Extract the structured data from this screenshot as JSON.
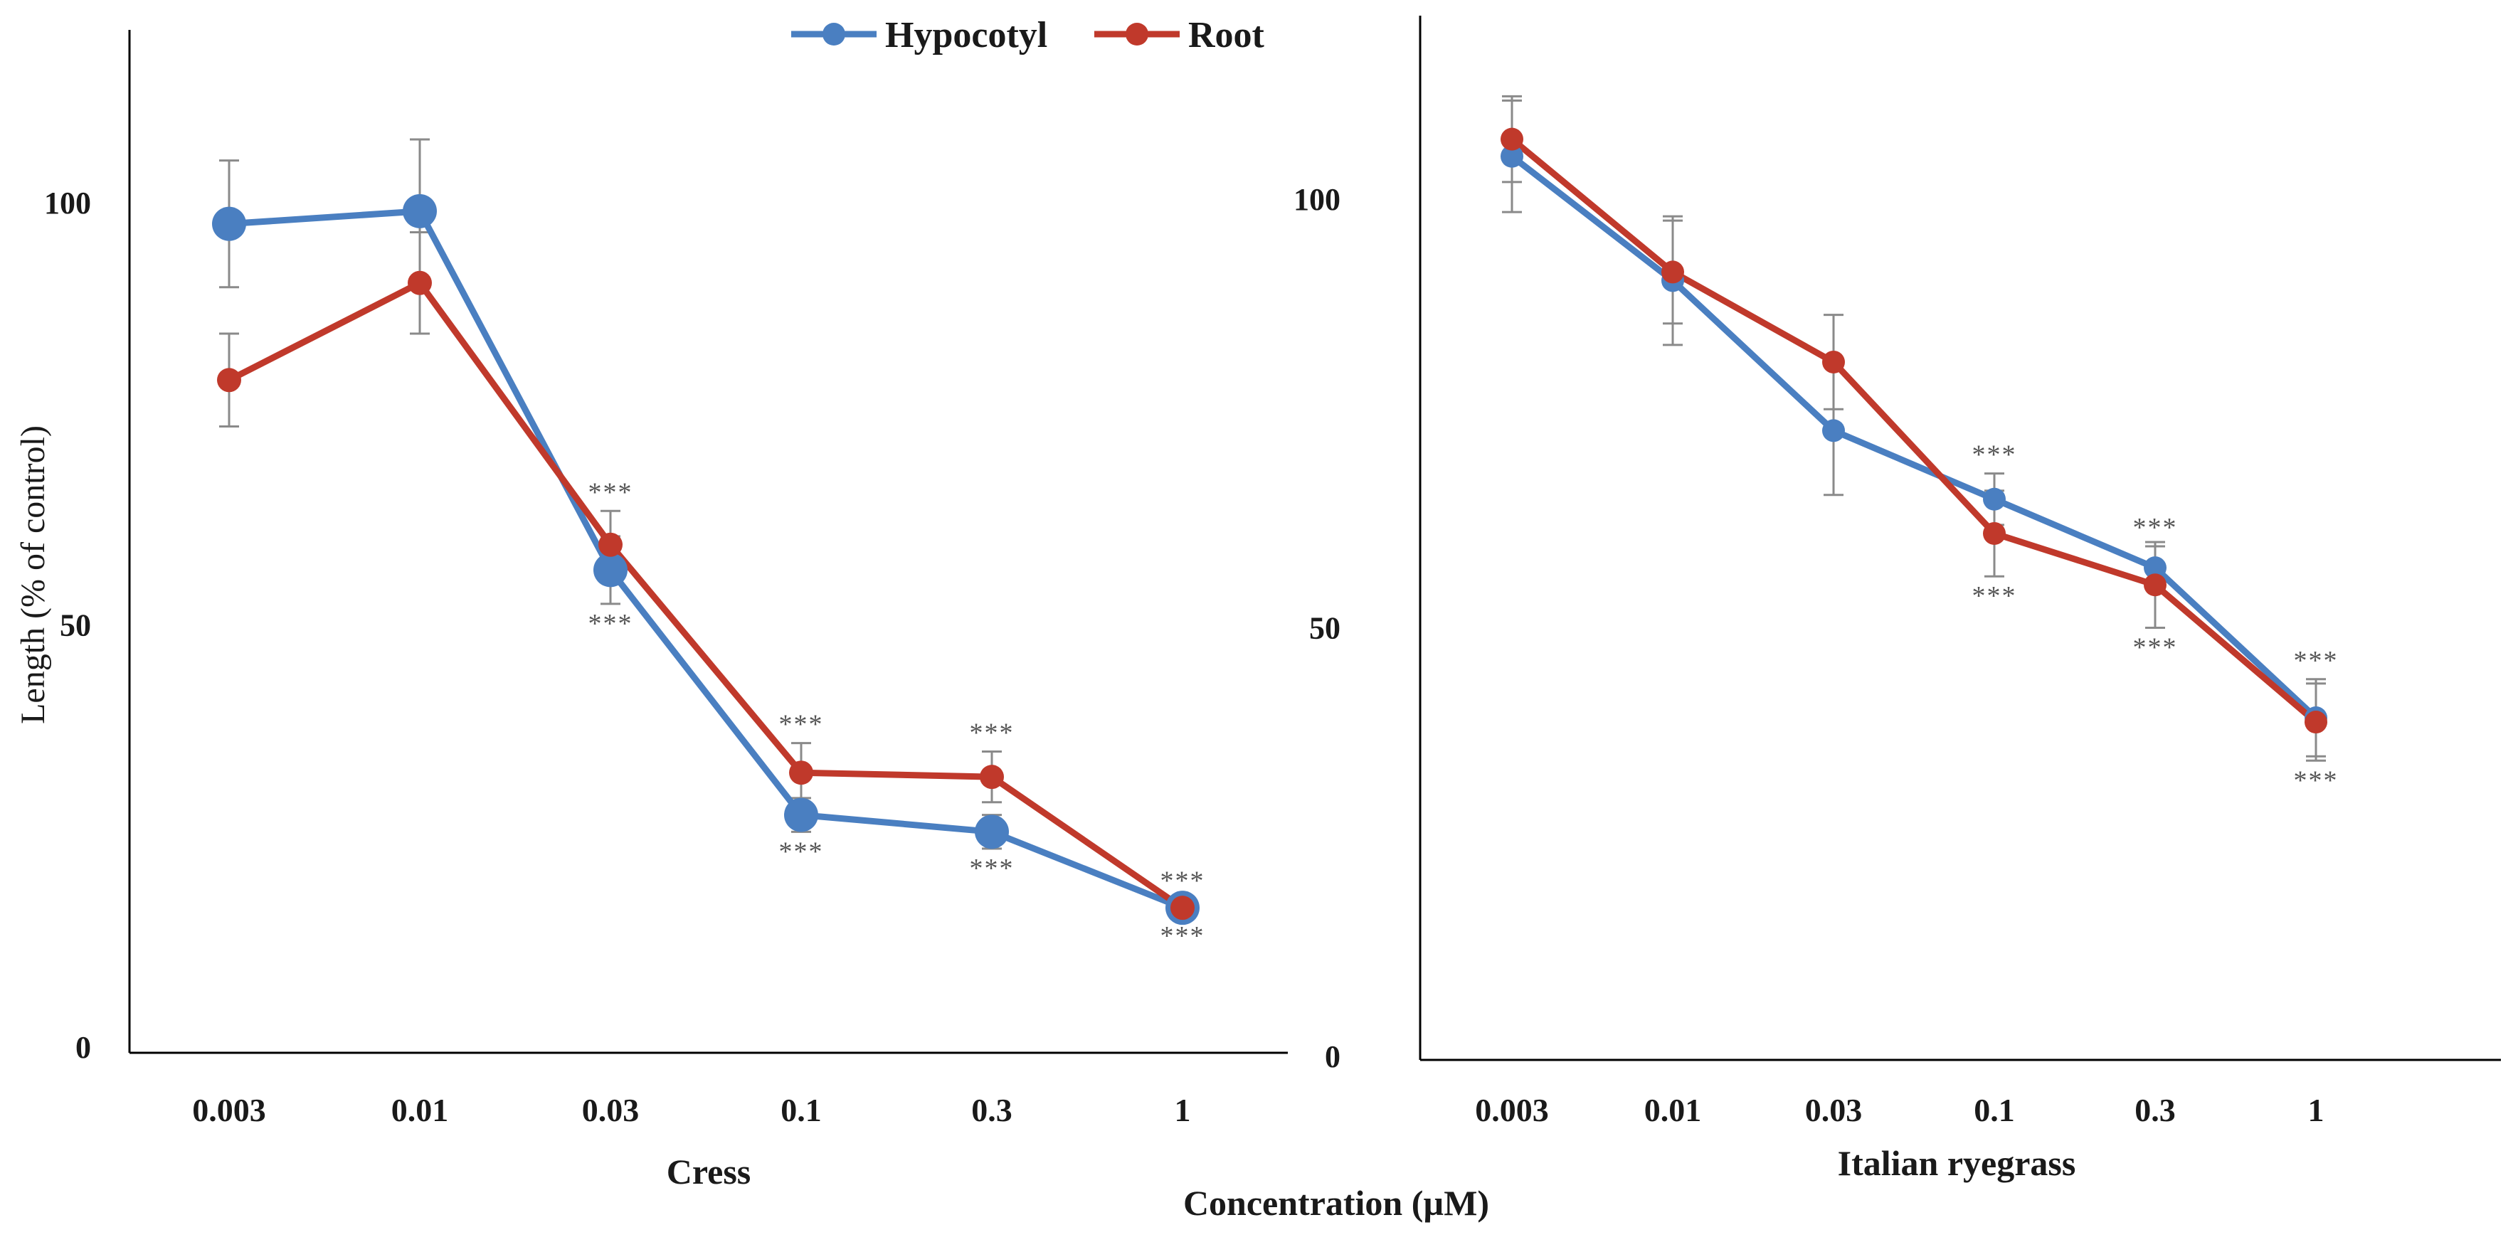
{
  "colors": {
    "hypocotyl": "#4a7fc1",
    "root": "#c0392b",
    "error_bar": "#8a8a8a"
  },
  "legend": [
    {
      "key": "hypocotyl",
      "label": "Hypocotyl"
    },
    {
      "key": "root",
      "label": "Root"
    }
  ],
  "shared_ylabel": "Length (% of control)",
  "shared_xlabel": "Concentration (µM)",
  "chart_data": [
    {
      "type": "line",
      "title": "",
      "xlabel": "Cress",
      "ylabel": "Length (% of control)",
      "categories": [
        "0.003",
        "0.01",
        "0.03",
        "0.1",
        "0.3",
        "1"
      ],
      "ylim": [
        0,
        120
      ],
      "yticks": [
        0,
        50,
        100
      ],
      "grid": false,
      "legend_position": "top-right",
      "series": [
        {
          "name": "Hypocotyl",
          "color_key": "hypocotyl",
          "values": [
            97.5,
            99,
            56.5,
            27.5,
            25.5,
            16.5
          ],
          "errors": [
            7.5,
            8.5,
            4,
            2,
            2,
            1
          ],
          "significance": [
            "",
            "",
            "***",
            "***",
            "***",
            "***"
          ],
          "significance_position": "below"
        },
        {
          "name": "Root",
          "color_key": "root",
          "values": [
            79,
            90.5,
            59.5,
            32.5,
            32,
            16.5
          ],
          "errors": [
            5.5,
            6,
            4,
            3.5,
            3,
            1
          ],
          "significance": [
            "",
            "",
            "***",
            "***",
            "***",
            "***"
          ],
          "significance_position": "above"
        }
      ]
    },
    {
      "type": "line",
      "title": "",
      "xlabel": "Italian ryegrass",
      "ylabel": "",
      "categories": [
        "0.003",
        "0.01",
        "0.03",
        "0.1",
        "0.3",
        "1"
      ],
      "ylim": [
        0,
        120
      ],
      "yticks": [
        0,
        50,
        100
      ],
      "grid": false,
      "series": [
        {
          "name": "Hypocotyl",
          "color_key": "hypocotyl",
          "values": [
            105,
            90.5,
            73,
            65,
            57,
            39.5
          ],
          "errors": [
            6.5,
            7.5,
            7.5,
            3,
            2.5,
            4.5
          ],
          "significance": [
            "",
            "",
            "",
            "***",
            "***",
            "***"
          ],
          "significance_position": "above"
        },
        {
          "name": "Root",
          "color_key": "root",
          "values": [
            107,
            91.5,
            81,
            61,
            55,
            39
          ],
          "errors": [
            5,
            6,
            5.5,
            5,
            5,
            4.5
          ],
          "significance": [
            "",
            "",
            "",
            "***",
            "***",
            "***"
          ],
          "significance_position": "below"
        }
      ]
    }
  ]
}
